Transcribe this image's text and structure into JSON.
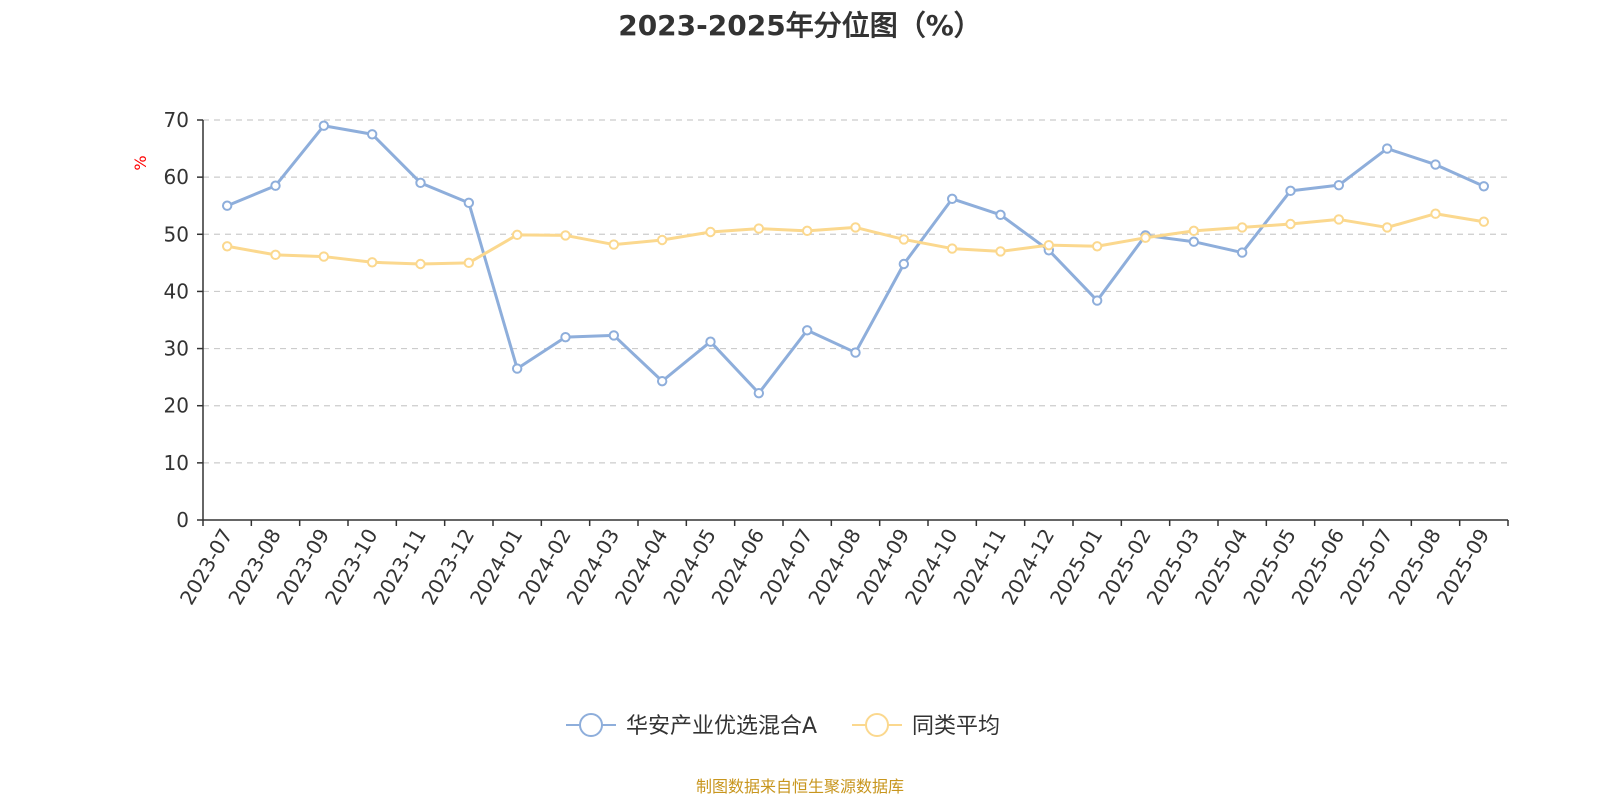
{
  "chart_data": {
    "type": "line",
    "title": "2023-2025年分位图（%）",
    "unit_label": "%",
    "ylim": [
      0,
      70
    ],
    "yticks": [
      0,
      10,
      20,
      30,
      40,
      50,
      60,
      70
    ],
    "grid": true,
    "legend_position": "bottom-center",
    "categories": [
      "2023-07",
      "2023-08",
      "2023-09",
      "2023-10",
      "2023-11",
      "2023-12",
      "2024-01",
      "2024-02",
      "2024-03",
      "2024-04",
      "2024-05",
      "2024-06",
      "2024-07",
      "2024-08",
      "2024-09",
      "2024-10",
      "2024-11",
      "2024-12",
      "2025-01",
      "2025-02",
      "2025-03",
      "2025-04",
      "2025-05",
      "2025-06",
      "2025-07",
      "2025-08",
      "2025-09"
    ],
    "series": [
      {
        "name": "华安产业优选混合A",
        "color": "#8eaedb",
        "values": [
          55.0,
          58.5,
          69.0,
          67.5,
          59.0,
          55.5,
          26.5,
          32.0,
          32.3,
          24.3,
          31.2,
          22.2,
          33.2,
          29.3,
          44.8,
          56.2,
          53.4,
          47.2,
          38.4,
          49.8,
          48.7,
          46.8,
          57.6,
          58.6,
          65.0,
          62.2,
          58.4
        ]
      },
      {
        "name": "同类平均",
        "color": "#fbd88e",
        "values": [
          47.9,
          46.4,
          46.1,
          45.1,
          44.8,
          45.0,
          49.9,
          49.8,
          48.2,
          49.0,
          50.4,
          51.0,
          50.6,
          51.2,
          49.1,
          47.5,
          47.0,
          48.1,
          47.9,
          49.4,
          50.6,
          51.2,
          51.8,
          52.6,
          51.2,
          53.6,
          52.2
        ]
      }
    ]
  },
  "source": "制图数据来自恒生聚源数据库"
}
